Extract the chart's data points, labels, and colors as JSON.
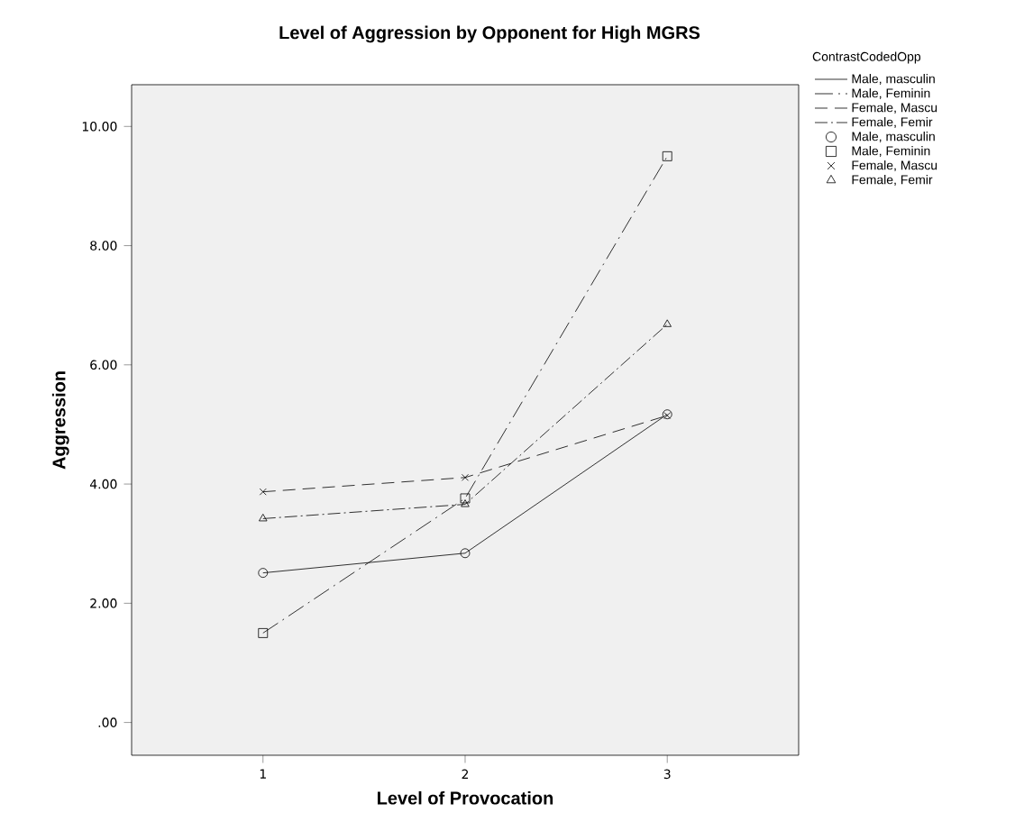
{
  "chart_data": {
    "type": "line",
    "title": "Level of Aggression by Opponent for High MGRS",
    "xlabel": "Level of Provocation",
    "ylabel": "Aggression",
    "legend_title": "ContrastCodedOpp",
    "x": [
      1,
      2,
      3
    ],
    "xlim": [
      0.35,
      3.65
    ],
    "xticks": [
      1,
      2,
      3
    ],
    "ylim": [
      -0.55,
      10.7
    ],
    "yticks": [
      {
        "value": 0,
        "label": ".00"
      },
      {
        "value": 2,
        "label": "2.00"
      },
      {
        "value": 4,
        "label": "4.00"
      },
      {
        "value": 6,
        "label": "6.00"
      },
      {
        "value": 8,
        "label": "8.00"
      },
      {
        "value": 10,
        "label": "10.00"
      }
    ],
    "legend": "right",
    "grid": false,
    "series": [
      {
        "name": "Male, masculin",
        "color": "#000000",
        "line_style": "solid",
        "marker": "circle",
        "values": [
          2.51,
          2.84,
          5.17
        ]
      },
      {
        "name": "Male, Feminin",
        "color": "#000000",
        "line_style": "longdashdot",
        "marker": "square",
        "values": [
          1.5,
          3.76,
          9.5
        ]
      },
      {
        "name": "Female, Mascu",
        "color": "#000000",
        "line_style": "dashed",
        "marker": "cross",
        "values": [
          3.87,
          4.11,
          5.15
        ]
      },
      {
        "name": "Female, Femir",
        "color": "#000000",
        "line_style": "dashdot",
        "marker": "triangle",
        "values": [
          3.42,
          3.66,
          6.68
        ]
      }
    ]
  }
}
